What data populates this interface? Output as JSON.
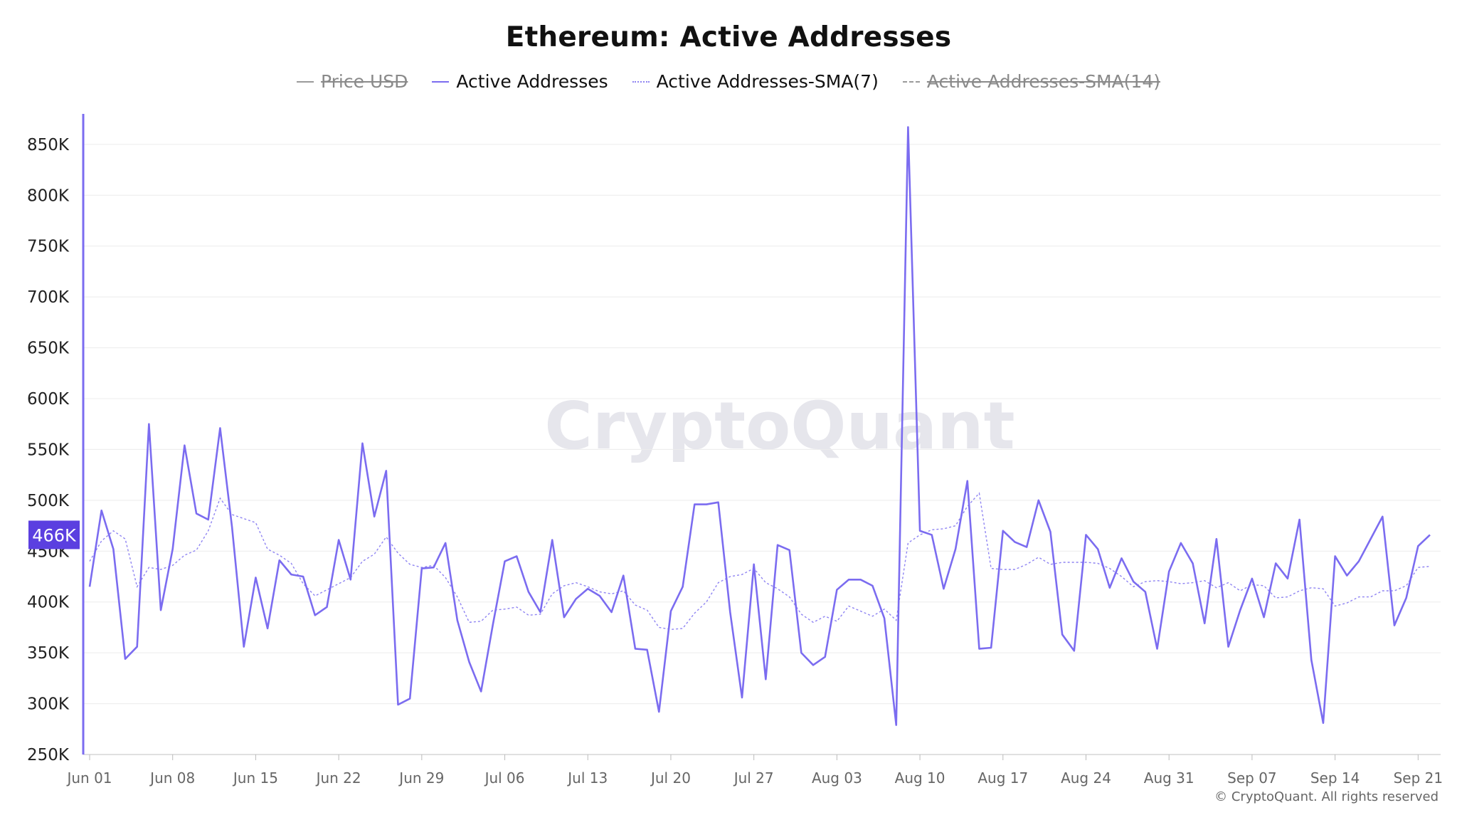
{
  "chart_data": {
    "type": "line",
    "title": "Ethereum: Active Addresses",
    "legend": [
      {
        "label": "Price USD",
        "enabled": false,
        "style": "solid"
      },
      {
        "label": "Active Addresses",
        "enabled": true,
        "style": "solid"
      },
      {
        "label": "Active Addresses-SMA(7)",
        "enabled": true,
        "style": "dotted"
      },
      {
        "label": "Active Addresses-SMA(14)",
        "enabled": false,
        "style": "dashed"
      }
    ],
    "legend_position": "top-center",
    "x_tick_labels": [
      "Jun 01",
      "Jun 08",
      "Jun 15",
      "Jun 22",
      "Jun 29",
      "Jul 06",
      "Jul 13",
      "Jul 20",
      "Jul 27",
      "Aug 03",
      "Aug 10",
      "Aug 17",
      "Aug 24",
      "Aug 31",
      "Sep 07",
      "Sep 14",
      "Sep 21"
    ],
    "y_tick_labels": [
      "250K",
      "300K",
      "350K",
      "400K",
      "450K",
      "500K",
      "550K",
      "600K",
      "650K",
      "700K",
      "750K",
      "800K",
      "850K"
    ],
    "ylim": [
      250000,
      880000
    ],
    "grid": true,
    "current_value_label": "466K",
    "colors": {
      "series": "#7b6cf0",
      "sma": "#8f84f2",
      "disabled": "#9a9a9a",
      "badge": "#5b3fe0"
    },
    "x_start": "2025-06-01",
    "series": [
      {
        "name": "Active Addresses",
        "values": [
          415000,
          490000,
          452000,
          344000,
          356000,
          575000,
          392000,
          452000,
          554000,
          487000,
          481000,
          571000,
          474000,
          356000,
          424000,
          374000,
          441000,
          427000,
          425000,
          387000,
          395000,
          461000,
          422000,
          556000,
          484000,
          529000,
          299000,
          305000,
          433000,
          434000,
          458000,
          382000,
          341000,
          312000,
          378000,
          440000,
          445000,
          410000,
          390000,
          461000,
          385000,
          403000,
          413000,
          406000,
          390000,
          426000,
          354000,
          353000,
          292000,
          391000,
          415000,
          496000,
          496000,
          498000,
          390000,
          306000,
          437000,
          324000,
          456000,
          451000,
          350000,
          338000,
          346000,
          412000,
          422000,
          422000,
          416000,
          384000,
          279000,
          867000,
          470000,
          466000,
          413000,
          452000,
          519000,
          354000,
          355000,
          470000,
          459000,
          454000,
          500000,
          469000,
          368000,
          352000,
          466000,
          452000,
          414000,
          443000,
          420000,
          410000,
          354000,
          430000,
          458000,
          438000,
          379000,
          462000,
          356000,
          392000,
          423000,
          385000,
          438000,
          423000,
          481000,
          343000,
          281000,
          445000,
          426000,
          440000,
          462000,
          484000,
          377000,
          404000,
          455000,
          466000
        ]
      },
      {
        "name": "Active Addresses-SMA(7)",
        "values": [
          440000,
          460000,
          470000,
          462000,
          415000,
          434000,
          432000,
          436000,
          446000,
          451000,
          470000,
          502000,
          486000,
          482000,
          478000,
          452000,
          446000,
          438000,
          418000,
          406000,
          412000,
          418000,
          424000,
          440000,
          447000,
          464000,
          448000,
          437000,
          434000,
          436000,
          424000,
          405000,
          380000,
          381000,
          392000,
          393000,
          395000,
          387000,
          388000,
          408000,
          416000,
          419000,
          415000,
          410000,
          408000,
          411000,
          397000,
          392000,
          375000,
          373000,
          374000,
          389000,
          400000,
          419000,
          425000,
          427000,
          433000,
          419000,
          413000,
          405000,
          388000,
          380000,
          386000,
          381000,
          396000,
          391000,
          386000,
          393000,
          382000,
          458000,
          466000,
          471000,
          472000,
          475000,
          494000,
          507000,
          433000,
          432000,
          432000,
          437000,
          444000,
          437000,
          439000,
          439000,
          439000,
          438000,
          433000,
          425000,
          415000,
          420000,
          421000,
          420000,
          418000,
          419000,
          421000,
          414000,
          419000,
          411000,
          417000,
          416000,
          404000,
          405000,
          411000,
          414000,
          413000,
          396000,
          399000,
          405000,
          405000,
          411000,
          411000,
          416000,
          434000,
          435000
        ]
      }
    ]
  },
  "watermark": "CryptoQuant",
  "copyright": "© CryptoQuant. All rights reserved"
}
